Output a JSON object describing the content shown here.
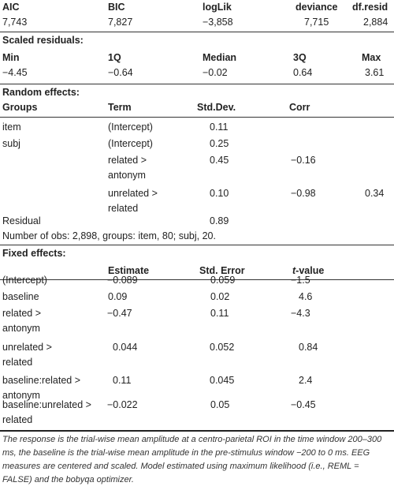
{
  "fit": {
    "headers": [
      "AIC",
      "BIC",
      "logLik",
      "deviance",
      "df.resid"
    ],
    "values": [
      "7,743",
      "7,827",
      "−3,858",
      "7,715",
      "2,884"
    ]
  },
  "scaled": {
    "title": "Scaled residuals:",
    "headers": [
      "Min",
      "1Q",
      "Median",
      "3Q",
      "Max"
    ],
    "values": [
      "−4.45",
      "−0.64",
      "−0.02",
      "0.64",
      "3.61"
    ]
  },
  "random": {
    "title": "Random effects:",
    "headers": [
      "Groups",
      "Term",
      "Std.Dev.",
      "Corr"
    ],
    "rows": [
      {
        "group": "item",
        "term": "(Intercept)",
        "sd": "0.11",
        "corr1": "",
        "corr2": ""
      },
      {
        "group": "subj",
        "term": "(Intercept)",
        "sd": "0.25",
        "corr1": "",
        "corr2": ""
      },
      {
        "group": "",
        "term": "related >",
        "term2": "antonym",
        "sd": "0.45",
        "corr1": "−0.16",
        "corr2": ""
      },
      {
        "group": "",
        "term": "unrelated >",
        "term2": "related",
        "sd": "0.10",
        "corr1": "−0.98",
        "corr2": "0.34"
      }
    ],
    "residual_label": "Residual",
    "residual_sd": "0.89",
    "nobs": "Number of obs: 2,898, groups: item, 80; subj, 20."
  },
  "fixed": {
    "title": "Fixed effects:",
    "headers": [
      "Estimate",
      "Std. Error",
      "t",
      "-value"
    ],
    "rows": [
      {
        "term": "(Intercept)",
        "term2": "",
        "est": "−0.089",
        "se": "0.059",
        "t": "−1.5"
      },
      {
        "term": "baseline",
        "term2": "",
        "est": "0.09",
        "se": "0.02",
        "t": "4.6"
      },
      {
        "term": "related >",
        "term2": "antonym",
        "est": "−0.47",
        "se": "0.11",
        "t": "−4.3"
      },
      {
        "term": "unrelated >",
        "term2": "related",
        "est": "0.044",
        "se": "0.052",
        "t": "0.84"
      },
      {
        "term": "baseline:related >",
        "term2": "antonym",
        "est": "0.11",
        "se": "0.045",
        "t": "2.4"
      },
      {
        "term": "baseline:unrelated >",
        "term2": "related",
        "est": "−0.022",
        "se": "0.05",
        "t": "−0.45"
      }
    ]
  },
  "note": "The response is the trial-wise mean amplitude at a centro-parietal ROI in the time window 200–300 ms, the baseline is the trial-wise mean amplitude in the pre-stimulus window −200 to 0 ms. EEG measures are centered and scaled. Model estimated using maximum likelihood (i.e., REML = FALSE) and the bobyqa optimizer."
}
